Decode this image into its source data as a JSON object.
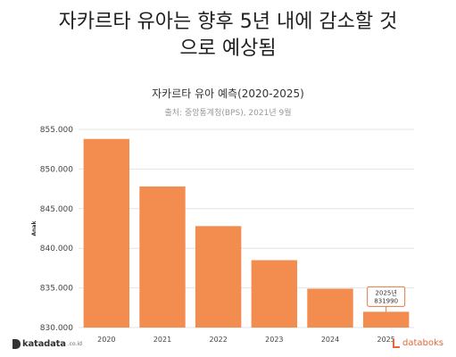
{
  "headline": {
    "line1": "자카르타 유아는 향후 5년 내에 감소할 것",
    "line2": "으로 예상됨"
  },
  "chart_data": {
    "type": "bar",
    "title": "자카르타 유아 예측(2020-2025)",
    "subtitle": "출처: 중앙통계청(BPS), 2021년 9월",
    "categories": [
      "2020",
      "2021",
      "2022",
      "2023",
      "2024",
      "2025"
    ],
    "values": [
      853800,
      847800,
      842800,
      838500,
      834900,
      831990
    ],
    "ylabel": "Anak",
    "xlabel": "",
    "ylim": [
      830000,
      855000
    ],
    "yticks": [
      830000,
      835000,
      840000,
      845000,
      850000,
      855000
    ],
    "ytick_labels": [
      "830.000",
      "835.000",
      "840.000",
      "845.000",
      "850.000",
      "855.000"
    ],
    "bar_color": "#f28c4f",
    "grid": true,
    "annotation": {
      "category": "2025",
      "line1": "2025년",
      "line2": "831990"
    }
  },
  "footer": {
    "left_brand": "katadata",
    "left_suffix": ".co.id",
    "right_brand": "databoks"
  }
}
